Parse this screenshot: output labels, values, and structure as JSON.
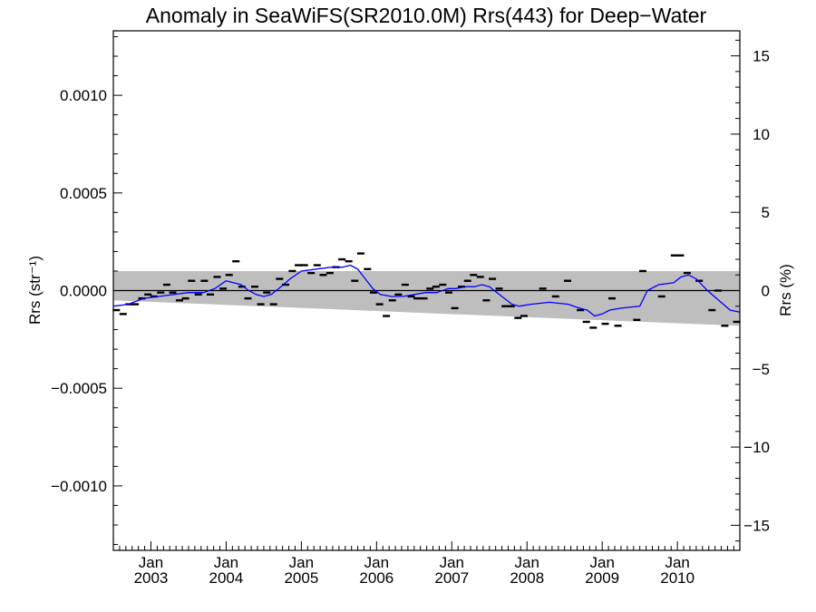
{
  "chart_data": {
    "type": "scatter",
    "title": "Anomaly in SeaWiFS(SR2010.0M) Rrs(443) for Deep−Water",
    "ylabel_left": "Rrs (str⁻¹)",
    "ylabel_right": "Rrs (%)",
    "xlim": [
      2002.5,
      2010.83
    ],
    "ylim_left": [
      -0.00133,
      0.00133
    ],
    "ylim_right": [
      -16.6,
      16.6
    ],
    "x_ticks": [
      {
        "value": 2003.0,
        "month": "Jan",
        "year": "2003"
      },
      {
        "value": 2004.0,
        "month": "Jan",
        "year": "2004"
      },
      {
        "value": 2005.0,
        "month": "Jan",
        "year": "2005"
      },
      {
        "value": 2006.0,
        "month": "Jan",
        "year": "2006"
      },
      {
        "value": 2007.0,
        "month": "Jan",
        "year": "2007"
      },
      {
        "value": 2008.0,
        "month": "Jan",
        "year": "2008"
      },
      {
        "value": 2009.0,
        "month": "Jan",
        "year": "2009"
      },
      {
        "value": 2010.0,
        "month": "Jan",
        "year": "2010"
      }
    ],
    "left_ticks": [
      {
        "value": 0.001,
        "label": "0.0010"
      },
      {
        "value": 0.0005,
        "label": "0.0005"
      },
      {
        "value": 0.0,
        "label": "0.0000"
      },
      {
        "value": -0.0005,
        "label": "−0.0005"
      },
      {
        "value": -0.001,
        "label": "−0.0010"
      }
    ],
    "right_ticks": [
      {
        "value": 15,
        "label": "15"
      },
      {
        "value": 10,
        "label": "10"
      },
      {
        "value": 5,
        "label": "5"
      },
      {
        "value": 0,
        "label": "0"
      },
      {
        "value": -5,
        "label": "−5"
      },
      {
        "value": -10,
        "label": "−10"
      },
      {
        "value": -15,
        "label": "−15"
      }
    ],
    "zero_line": 0.0,
    "band": {
      "color": "#bebebe",
      "x": [
        2002.5,
        2010.83
      ],
      "upper": [
        0.0001,
        0.0001
      ],
      "lower": [
        -5e-05,
        -0.00018
      ]
    },
    "monthly_anomalies": {
      "color": "#000000",
      "points": [
        [
          2002.54,
          -0.0001
        ],
        [
          2002.63,
          -0.00012
        ],
        [
          2002.71,
          -7e-05
        ],
        [
          2002.79,
          -7e-05
        ],
        [
          2002.88,
          -4e-05
        ],
        [
          2002.96,
          -2e-05
        ],
        [
          2003.04,
          -3e-05
        ],
        [
          2003.13,
          -1e-05
        ],
        [
          2003.21,
          3e-05
        ],
        [
          2003.29,
          -1e-05
        ],
        [
          2003.38,
          -5e-05
        ],
        [
          2003.46,
          -4e-05
        ],
        [
          2003.54,
          5e-05
        ],
        [
          2003.63,
          -2e-05
        ],
        [
          2003.71,
          5e-05
        ],
        [
          2003.79,
          -2e-05
        ],
        [
          2003.88,
          7e-05
        ],
        [
          2003.96,
          1e-05
        ],
        [
          2004.04,
          8e-05
        ],
        [
          2004.13,
          0.00015
        ],
        [
          2004.21,
          2e-05
        ],
        [
          2004.29,
          -4e-05
        ],
        [
          2004.38,
          2e-05
        ],
        [
          2004.46,
          -7e-05
        ],
        [
          2004.54,
          -1e-05
        ],
        [
          2004.63,
          -7e-05
        ],
        [
          2004.71,
          6e-05
        ],
        [
          2004.79,
          3e-05
        ],
        [
          2004.88,
          0.0001
        ],
        [
          2004.96,
          0.00013
        ],
        [
          2005.04,
          0.00013
        ],
        [
          2005.13,
          9e-05
        ],
        [
          2005.21,
          0.00013
        ],
        [
          2005.29,
          8e-05
        ],
        [
          2005.38,
          9e-05
        ],
        [
          2005.46,
          0.00012
        ],
        [
          2005.54,
          0.00016
        ],
        [
          2005.63,
          0.00015
        ],
        [
          2005.71,
          5e-05
        ],
        [
          2005.79,
          0.00019
        ],
        [
          2005.88,
          0.00011
        ],
        [
          2005.96,
          -1e-05
        ],
        [
          2006.04,
          -7e-05
        ],
        [
          2006.13,
          -0.00013
        ],
        [
          2006.21,
          -5e-05
        ],
        [
          2006.29,
          -2e-05
        ],
        [
          2006.38,
          3e-05
        ],
        [
          2006.46,
          -3e-05
        ],
        [
          2006.54,
          -4e-05
        ],
        [
          2006.63,
          -4e-05
        ],
        [
          2006.71,
          1e-05
        ],
        [
          2006.79,
          2e-05
        ],
        [
          2006.88,
          3e-05
        ],
        [
          2006.96,
          -1e-05
        ],
        [
          2007.04,
          -9e-05
        ],
        [
          2007.13,
          2e-05
        ],
        [
          2007.21,
          5e-05
        ],
        [
          2007.29,
          8e-05
        ],
        [
          2007.38,
          7e-05
        ],
        [
          2007.46,
          -5e-05
        ],
        [
          2007.54,
          6e-05
        ],
        [
          2007.63,
          1e-05
        ],
        [
          2007.71,
          -8e-05
        ],
        [
          2007.79,
          -8e-05
        ],
        [
          2007.88,
          -0.00014
        ],
        [
          2007.96,
          -0.00013
        ],
        [
          2008.21,
          1e-05
        ],
        [
          2008.38,
          -3e-05
        ],
        [
          2008.54,
          5e-05
        ],
        [
          2008.71,
          -0.0001
        ],
        [
          2008.79,
          -0.00016
        ],
        [
          2008.88,
          -0.00019
        ],
        [
          2009.04,
          -0.00017
        ],
        [
          2009.13,
          -4e-05
        ],
        [
          2009.21,
          -0.00018
        ],
        [
          2009.46,
          -0.00015
        ],
        [
          2009.54,
          0.0001
        ],
        [
          2009.79,
          -3e-05
        ],
        [
          2009.96,
          0.00018
        ],
        [
          2010.04,
          0.00018
        ],
        [
          2010.13,
          9e-05
        ],
        [
          2010.29,
          5e-05
        ],
        [
          2010.46,
          -0.0001
        ],
        [
          2010.54,
          0.0
        ],
        [
          2010.63,
          -0.00018
        ],
        [
          2010.79,
          -0.00016
        ]
      ]
    },
    "running_mean": {
      "color": "#0000ff",
      "points": [
        [
          2002.5,
          -8e-05
        ],
        [
          2002.7,
          -7e-05
        ],
        [
          2002.9,
          -4e-05
        ],
        [
          2003.1,
          -3e-05
        ],
        [
          2003.3,
          -2e-05
        ],
        [
          2003.5,
          -1e-05
        ],
        [
          2003.7,
          -1e-05
        ],
        [
          2003.85,
          1e-05
        ],
        [
          2004.0,
          5e-05
        ],
        [
          2004.1,
          4e-05
        ],
        [
          2004.2,
          3e-05
        ],
        [
          2004.3,
          0.0
        ],
        [
          2004.4,
          -2e-05
        ],
        [
          2004.5,
          -3e-05
        ],
        [
          2004.6,
          -2e-05
        ],
        [
          2004.7,
          1e-05
        ],
        [
          2004.85,
          6e-05
        ],
        [
          2005.0,
          0.0001
        ],
        [
          2005.2,
          0.00011
        ],
        [
          2005.4,
          0.00012
        ],
        [
          2005.55,
          0.00012
        ],
        [
          2005.65,
          0.00013
        ],
        [
          2005.75,
          0.00011
        ],
        [
          2005.85,
          6e-05
        ],
        [
          2005.95,
          1e-05
        ],
        [
          2006.05,
          -2e-05
        ],
        [
          2006.2,
          -3e-05
        ],
        [
          2006.35,
          -3e-05
        ],
        [
          2006.5,
          -2e-05
        ],
        [
          2006.65,
          -1e-05
        ],
        [
          2006.8,
          -1e-05
        ],
        [
          2006.95,
          1e-05
        ],
        [
          2007.05,
          1e-05
        ],
        [
          2007.2,
          2e-05
        ],
        [
          2007.3,
          2e-05
        ],
        [
          2007.4,
          3e-05
        ],
        [
          2007.5,
          2e-05
        ],
        [
          2007.6,
          -1e-05
        ],
        [
          2007.7,
          -4e-05
        ],
        [
          2007.8,
          -7e-05
        ],
        [
          2007.9,
          -8e-05
        ],
        [
          2008.05,
          -7e-05
        ],
        [
          2008.3,
          -6e-05
        ],
        [
          2008.55,
          -7e-05
        ],
        [
          2008.7,
          -9e-05
        ],
        [
          2008.8,
          -0.0001
        ],
        [
          2008.9,
          -0.00013
        ],
        [
          2009.0,
          -0.00012
        ],
        [
          2009.1,
          -0.0001
        ],
        [
          2009.25,
          -9e-05
        ],
        [
          2009.5,
          -8e-05
        ],
        [
          2009.6,
          0.0
        ],
        [
          2009.75,
          3e-05
        ],
        [
          2009.95,
          4e-05
        ],
        [
          2010.05,
          7e-05
        ],
        [
          2010.15,
          8e-05
        ],
        [
          2010.25,
          6e-05
        ],
        [
          2010.4,
          0.0
        ],
        [
          2010.55,
          -5e-05
        ],
        [
          2010.7,
          -0.0001
        ],
        [
          2010.83,
          -0.00011
        ]
      ]
    },
    "grid": false,
    "legend": "none"
  }
}
